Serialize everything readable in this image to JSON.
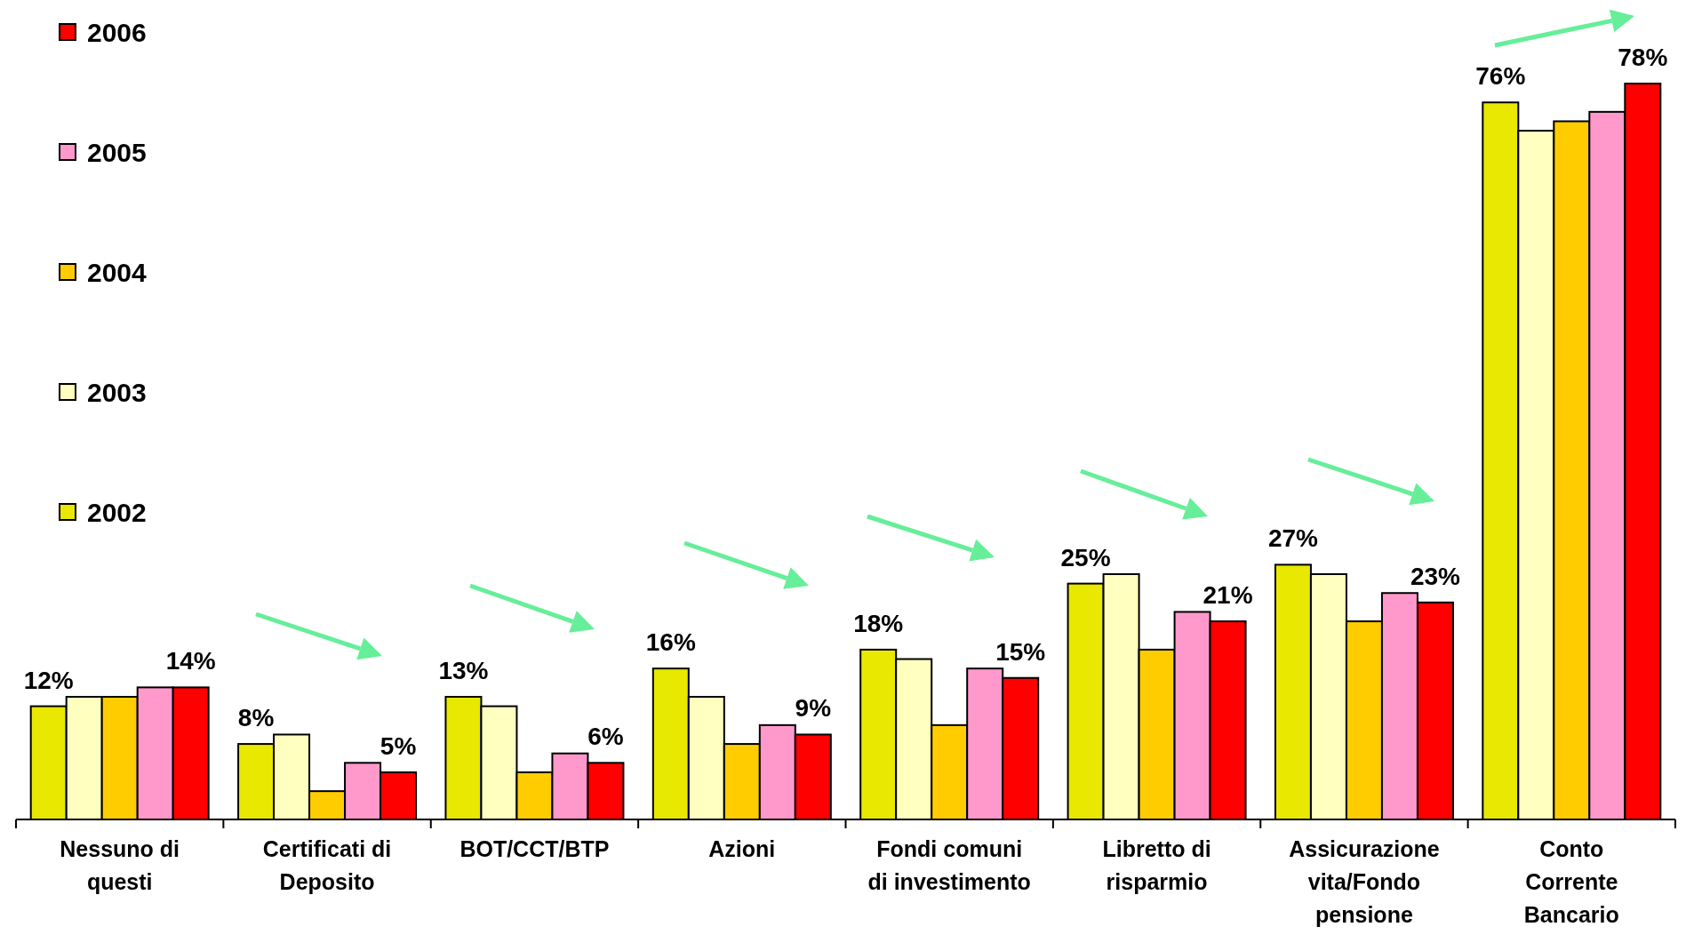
{
  "chart_data": {
    "type": "bar",
    "categories": [
      "Nessuno di\nquesti",
      "Certificati di\nDeposito",
      "BOT/CCT/BTP",
      "Azioni",
      "Fondi comuni\ndi investimento",
      "Libretto di\nrisparmio",
      "Assicurazione\nvita/Fondo\npensione",
      "Conto\nCorrente\nBancario"
    ],
    "series": [
      {
        "name": "2002",
        "color": "#e8e800",
        "values": [
          12,
          8,
          13,
          16,
          18,
          25,
          27,
          76
        ],
        "value_labels": [
          "12%",
          "8%",
          "13%",
          "16%",
          "18%",
          "25%",
          "27%",
          "76%"
        ]
      },
      {
        "name": "2003",
        "color": "#ffffc0",
        "values": [
          13,
          9,
          12,
          13,
          17,
          26,
          26,
          73
        ]
      },
      {
        "name": "2004",
        "color": "#ffcc00",
        "values": [
          13,
          3,
          5,
          8,
          10,
          18,
          21,
          74
        ]
      },
      {
        "name": "2005",
        "color": "#ff99cc",
        "values": [
          14,
          6,
          7,
          10,
          16,
          22,
          24,
          75
        ]
      },
      {
        "name": "2006",
        "color": "#ff0000",
        "values": [
          14,
          5,
          6,
          9,
          15,
          21,
          23,
          78
        ],
        "value_labels": [
          "14%",
          "5%",
          "6%",
          "9%",
          "15%",
          "21%",
          "23%",
          "78%"
        ]
      }
    ],
    "legend": "left"
  }
}
